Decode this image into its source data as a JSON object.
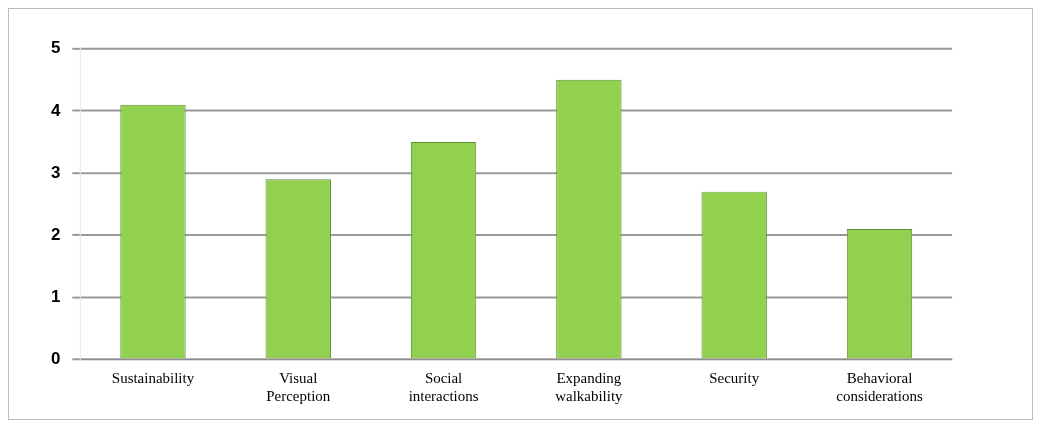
{
  "chart_data": {
    "type": "bar",
    "categories": [
      "Sustainability",
      "Visual Perception",
      "Social interactions",
      "Expanding walkability",
      "Security",
      "Behavioral considerations"
    ],
    "values": [
      4.1,
      2.9,
      3.5,
      4.5,
      2.7,
      2.1
    ],
    "color": "#92d050",
    "ylim": [
      0,
      5
    ],
    "yticks": [
      0,
      1,
      2,
      3,
      4,
      5
    ],
    "grid": "y",
    "legend": false
  }
}
